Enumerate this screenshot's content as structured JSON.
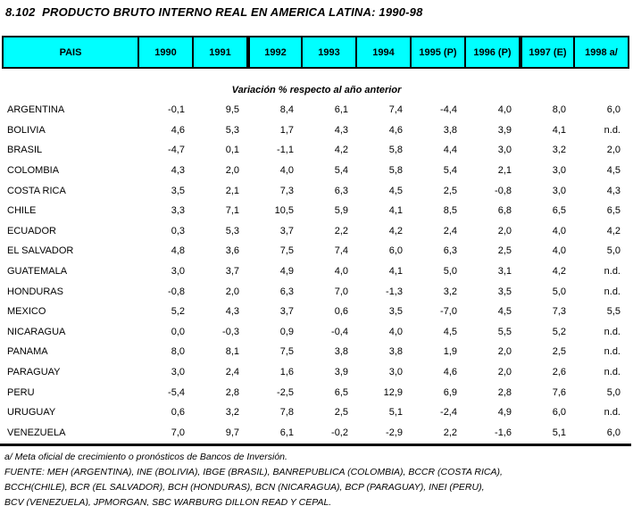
{
  "chart_data": {
    "type": "table",
    "title": "8.102  PRODUCTO BRUTO INTERNO REAL EN AMERICA LATINA: 1990-98",
    "subtitle": "Variación % respecto al año anterior",
    "columns": [
      "PAIS",
      "1990",
      "1991",
      "1992",
      "1993",
      "1994",
      "1995 (P)",
      "1996 (P)",
      "1997 (E)",
      "1998 a/"
    ],
    "thick_borders_before_columns": [
      3,
      8
    ],
    "rows": [
      {
        "pais": "ARGENTINA",
        "values": [
          "-0,1",
          "9,5",
          "8,4",
          "6,1",
          "7,4",
          "-4,4",
          "4,0",
          "8,0",
          "6,0"
        ]
      },
      {
        "pais": "BOLIVIA",
        "values": [
          "4,6",
          "5,3",
          "1,7",
          "4,3",
          "4,6",
          "3,8",
          "3,9",
          "4,1",
          "n.d."
        ]
      },
      {
        "pais": "BRASIL",
        "values": [
          "-4,7",
          "0,1",
          "-1,1",
          "4,2",
          "5,8",
          "4,4",
          "3,0",
          "3,2",
          "2,0"
        ]
      },
      {
        "pais": "COLOMBIA",
        "values": [
          "4,3",
          "2,0",
          "4,0",
          "5,4",
          "5,8",
          "5,4",
          "2,1",
          "3,0",
          "4,5"
        ]
      },
      {
        "pais": "COSTA RICA",
        "values": [
          "3,5",
          "2,1",
          "7,3",
          "6,3",
          "4,5",
          "2,5",
          "-0,8",
          "3,0",
          "4,3"
        ]
      },
      {
        "pais": "CHILE",
        "values": [
          "3,3",
          "7,1",
          "10,5",
          "5,9",
          "4,1",
          "8,5",
          "6,8",
          "6,5",
          "6,5"
        ]
      },
      {
        "pais": "ECUADOR",
        "values": [
          "0,3",
          "5,3",
          "3,7",
          "2,2",
          "4,2",
          "2,4",
          "2,0",
          "4,0",
          "4,2"
        ]
      },
      {
        "pais": "EL SALVADOR",
        "values": [
          "4,8",
          "3,6",
          "7,5",
          "7,4",
          "6,0",
          "6,3",
          "2,5",
          "4,0",
          "5,0"
        ]
      },
      {
        "pais": "GUATEMALA",
        "values": [
          "3,0",
          "3,7",
          "4,9",
          "4,0",
          "4,1",
          "5,0",
          "3,1",
          "4,2",
          "n.d."
        ]
      },
      {
        "pais": "HONDURAS",
        "values": [
          "-0,8",
          "2,0",
          "6,3",
          "7,0",
          "-1,3",
          "3,2",
          "3,5",
          "5,0",
          "n.d."
        ]
      },
      {
        "pais": "MEXICO",
        "values": [
          "5,2",
          "4,3",
          "3,7",
          "0,6",
          "3,5",
          "-7,0",
          "4,5",
          "7,3",
          "5,5"
        ]
      },
      {
        "pais": "NICARAGUA",
        "values": [
          "0,0",
          "-0,3",
          "0,9",
          "-0,4",
          "4,0",
          "4,5",
          "5,5",
          "5,2",
          "n.d."
        ]
      },
      {
        "pais": "PANAMA",
        "values": [
          "8,0",
          "8,1",
          "7,5",
          "3,8",
          "3,8",
          "1,9",
          "2,0",
          "2,5",
          "n.d."
        ]
      },
      {
        "pais": "PARAGUAY",
        "values": [
          "3,0",
          "2,4",
          "1,6",
          "3,9",
          "3,0",
          "4,6",
          "2,0",
          "2,6",
          "n.d."
        ]
      },
      {
        "pais": "PERU",
        "values": [
          "-5,4",
          "2,8",
          "-2,5",
          "6,5",
          "12,9",
          "6,9",
          "2,8",
          "7,6",
          "5,0"
        ]
      },
      {
        "pais": "URUGUAY",
        "values": [
          "0,6",
          "3,2",
          "7,8",
          "2,5",
          "5,1",
          "-2,4",
          "4,9",
          "6,0",
          "n.d."
        ]
      },
      {
        "pais": "VENEZUELA",
        "values": [
          "7,0",
          "9,7",
          "6,1",
          "-0,2",
          "-2,9",
          "2,2",
          "-1,6",
          "5,1",
          "6,0"
        ]
      }
    ]
  },
  "footnotes": [
    "a/ Meta oficial de crecimiento o pronósticos de Bancos de Inversión.",
    "FUENTE: MEH (ARGENTINA), INE (BOLIVIA), IBGE (BRASIL), BANREPUBLICA (COLOMBIA), BCCR (COSTA RICA),",
    "BCCH(CHILE), BCR (EL SALVADOR),  BCH (HONDURAS), BCN (NICARAGUA), BCP (PARAGUAY), INEI (PERU),",
    "BCV (VENEZUELA), JPMORGAN, SBC WARBURG DILLON READ Y CEPAL."
  ],
  "colors": {
    "header_bg": "#00FFFF",
    "border": "#000000",
    "text": "#000000"
  }
}
